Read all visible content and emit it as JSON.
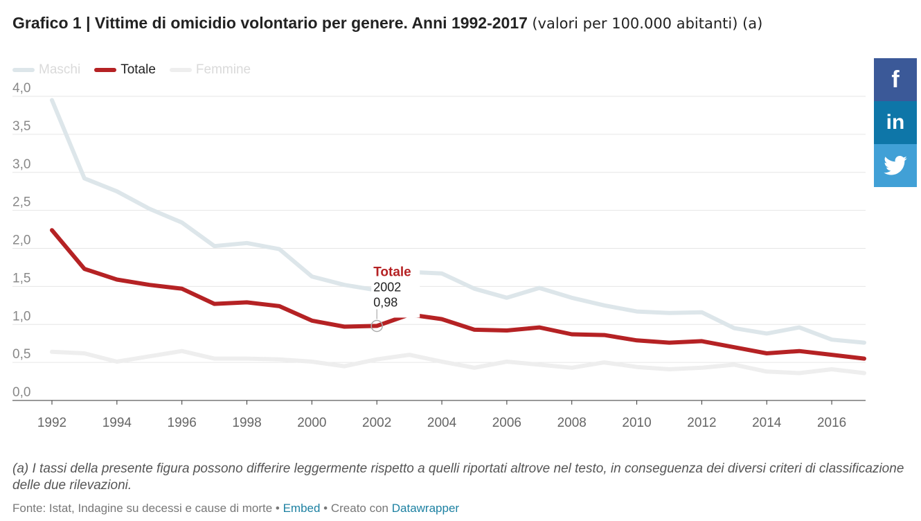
{
  "title_bold": "Grafico 1 | Vittime di omicidio volontario per genere. Anni 1992-2017",
  "title_rest": "(valori per 100.000 abitanti) (a)",
  "legend": [
    {
      "label": "Maschi",
      "color": "#dde6ea",
      "text_color": "#dadada"
    },
    {
      "label": "Totale",
      "color": "#b52224",
      "text_color": "#222222"
    },
    {
      "label": "Femmine",
      "color": "#eeeeee",
      "text_color": "#dadada"
    }
  ],
  "social": {
    "facebook": "f",
    "linkedin": "in"
  },
  "chart_data": {
    "type": "line",
    "x": [
      1992,
      1993,
      1994,
      1995,
      1996,
      1997,
      1998,
      1999,
      2000,
      2001,
      2002,
      2003,
      2004,
      2005,
      2006,
      2007,
      2008,
      2009,
      2010,
      2011,
      2012,
      2013,
      2014,
      2015,
      2016,
      2017
    ],
    "xticks": [
      "1992",
      "1994",
      "1996",
      "1998",
      "2000",
      "2002",
      "2004",
      "2006",
      "2008",
      "2010",
      "2012",
      "2014",
      "2016"
    ],
    "yticks": [
      "0,0",
      "0,5",
      "1,0",
      "1,5",
      "2,0",
      "2,5",
      "3,0",
      "3,5",
      "4,0"
    ],
    "ylim": [
      0,
      4.0
    ],
    "grid": true,
    "series": [
      {
        "name": "Maschi",
        "color": "#dde6ea",
        "values": [
          3.95,
          2.92,
          2.75,
          2.52,
          2.34,
          2.03,
          2.07,
          1.99,
          1.63,
          1.52,
          1.45,
          1.69,
          1.67,
          1.47,
          1.35,
          1.48,
          1.35,
          1.25,
          1.17,
          1.15,
          1.16,
          0.95,
          0.88,
          0.96,
          0.8,
          0.76
        ]
      },
      {
        "name": "Femmine",
        "color": "#eeeeee",
        "values": [
          0.64,
          0.62,
          0.51,
          0.58,
          0.65,
          0.55,
          0.55,
          0.54,
          0.51,
          0.45,
          0.54,
          0.6,
          0.51,
          0.43,
          0.51,
          0.47,
          0.43,
          0.5,
          0.44,
          0.41,
          0.43,
          0.47,
          0.38,
          0.36,
          0.41,
          0.36
        ]
      },
      {
        "name": "Totale",
        "color": "#b52224",
        "values": [
          2.24,
          1.73,
          1.59,
          1.52,
          1.47,
          1.27,
          1.29,
          1.24,
          1.05,
          0.97,
          0.98,
          1.13,
          1.07,
          0.93,
          0.92,
          0.96,
          0.87,
          0.86,
          0.79,
          0.76,
          0.78,
          0.7,
          0.62,
          0.65,
          0.6,
          0.55
        ]
      }
    ],
    "annotation": {
      "series": "Totale",
      "year": "2002",
      "value": "0,98"
    }
  },
  "note": "(a) I tassi della presente figura possono differire leggermente rispetto a quelli riportati altrove nel testo, in conseguenza dei diversi criteri di classificazione delle due rilevazioni.",
  "source": {
    "text": "Fonte: Istat, Indagine su decessi e cause di morte",
    "sep": " • ",
    "embed": "Embed",
    "created": "Creato con",
    "datawrapper": "Datawrapper"
  }
}
